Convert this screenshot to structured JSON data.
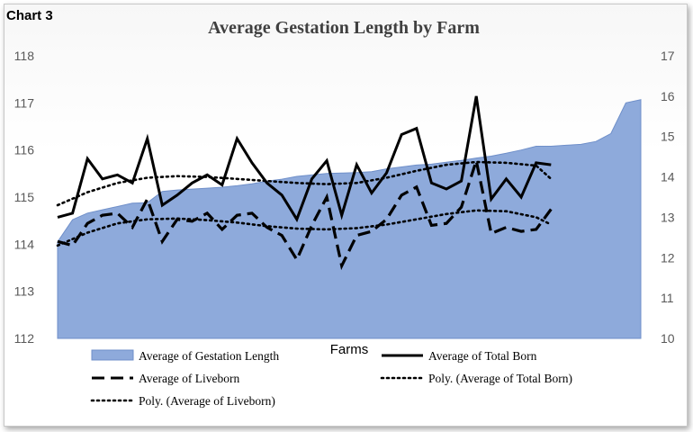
{
  "corner_label": "Chart 3",
  "chart_data": {
    "type": "area",
    "title": "Average Gestation Length by Farm",
    "xlabel": "Farms",
    "ylabel": "",
    "y2label": "",
    "ylim": [
      112,
      118
    ],
    "y2lim": [
      10,
      17
    ],
    "yticks": [
      "112",
      "113",
      "114",
      "115",
      "116",
      "117",
      "118"
    ],
    "y2ticks": [
      "10",
      "11",
      "12",
      "13",
      "14",
      "15",
      "16",
      "17"
    ],
    "n_farms": 40,
    "series": [
      {
        "name": "Average of Gestation Length",
        "axis": "left",
        "kind": "area",
        "color": "#8eaadb",
        "values": [
          114.05,
          114.52,
          114.66,
          114.73,
          114.8,
          114.87,
          114.88,
          115.12,
          115.15,
          115.17,
          115.19,
          115.21,
          115.24,
          115.28,
          115.34,
          115.38,
          115.44,
          115.47,
          115.5,
          115.51,
          115.52,
          115.54,
          115.6,
          115.64,
          115.68,
          115.7,
          115.74,
          115.78,
          115.83,
          115.87,
          115.93,
          116.0,
          116.08,
          116.08,
          116.1,
          116.12,
          116.18,
          116.35,
          117.0,
          117.07
        ]
      },
      {
        "name": "Average of Total Born",
        "axis": "right",
        "kind": "line",
        "style": "solid",
        "color": "#000000",
        "values": [
          13.0,
          13.1,
          14.45,
          13.95,
          14.05,
          13.85,
          14.95,
          13.3,
          13.55,
          13.85,
          14.05,
          13.8,
          14.95,
          14.35,
          13.85,
          13.55,
          12.95,
          13.95,
          14.4,
          13.05,
          14.3,
          13.6,
          14.1,
          15.05,
          15.2,
          13.85,
          13.7,
          13.9,
          16.0,
          13.45,
          13.95,
          13.5,
          14.35,
          14.3
        ],
        "x_index": [
          0,
          1,
          2,
          3,
          4,
          5,
          6,
          7,
          8,
          9,
          10,
          11,
          12,
          13,
          14,
          15,
          16,
          17,
          18,
          19,
          20,
          21,
          22,
          23,
          24,
          25,
          26,
          27,
          28,
          29,
          30,
          31,
          32,
          33
        ]
      },
      {
        "name": "Average of Liveborn",
        "axis": "right",
        "kind": "line",
        "style": "dashed",
        "color": "#000000",
        "values": [
          12.4,
          12.3,
          12.85,
          13.05,
          13.1,
          12.75,
          13.45,
          12.4,
          12.95,
          12.9,
          13.1,
          12.7,
          13.05,
          13.1,
          12.75,
          12.55,
          11.95,
          12.8,
          13.5,
          11.8,
          12.55,
          12.65,
          12.95,
          13.55,
          13.75,
          12.8,
          12.85,
          13.25,
          14.4,
          12.6,
          12.75,
          12.65,
          12.7,
          13.2
        ],
        "x_index": [
          0,
          1,
          2,
          3,
          4,
          5,
          6,
          7,
          8,
          9,
          10,
          11,
          12,
          13,
          14,
          15,
          16,
          17,
          18,
          19,
          20,
          21,
          22,
          23,
          24,
          25,
          26,
          27,
          28,
          29,
          30,
          31,
          32,
          33
        ]
      },
      {
        "name": "Poly. (Average of Total Born)",
        "axis": "right",
        "kind": "trend",
        "style": "dotted",
        "color": "#000000",
        "values": [
          13.3,
          13.62,
          13.85,
          13.98,
          14.02,
          14.0,
          13.95,
          13.9,
          13.85,
          13.82,
          13.85,
          13.98,
          14.15,
          14.3,
          14.37,
          14.35,
          14.28,
          13.95
        ],
        "x_index": [
          0,
          2,
          4,
          6,
          8,
          10,
          12,
          14,
          16,
          18,
          20,
          22,
          24,
          26,
          28,
          30,
          32,
          33
        ]
      },
      {
        "name": "Poly. (Average of Liveborn)",
        "axis": "right",
        "kind": "trend",
        "style": "dotted",
        "color": "#000000",
        "values": [
          12.3,
          12.62,
          12.85,
          12.95,
          12.97,
          12.93,
          12.87,
          12.78,
          12.72,
          12.7,
          12.73,
          12.82,
          12.95,
          13.08,
          13.17,
          13.15,
          13.0,
          12.82
        ],
        "x_index": [
          0,
          2,
          4,
          6,
          8,
          10,
          12,
          14,
          16,
          18,
          20,
          22,
          24,
          26,
          28,
          30,
          32,
          33
        ]
      }
    ],
    "legend": [
      "Average of Gestation Length",
      "Average of Total Born",
      "Average of Liveborn",
      "Poly. (Average of Total Born)",
      "Poly. (Average of Liveborn)"
    ],
    "legend_position": "bottom",
    "grid": false
  }
}
